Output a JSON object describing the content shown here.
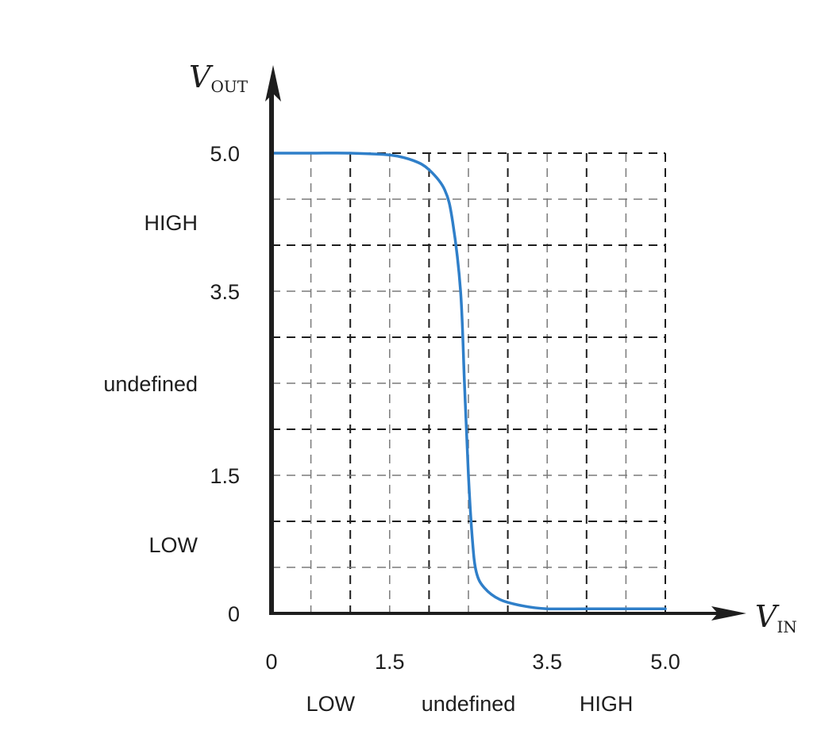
{
  "chart_data": {
    "type": "line",
    "x_axis": {
      "label": "V",
      "label_subscript": "IN",
      "range": [
        0,
        5.0
      ],
      "ticks": [
        {
          "value": 0,
          "label": "0"
        },
        {
          "value": 1.5,
          "label": "1.5"
        },
        {
          "value": 3.5,
          "label": "3.5"
        },
        {
          "value": 5.0,
          "label": "5.0"
        }
      ],
      "regions": [
        {
          "name": "LOW",
          "center": 0.75
        },
        {
          "name": "undefined",
          "center": 2.5
        },
        {
          "name": "HIGH",
          "center": 4.25
        }
      ]
    },
    "y_axis": {
      "label": "V",
      "label_subscript": "OUT",
      "range": [
        0,
        5.0
      ],
      "ticks": [
        {
          "value": 0,
          "label": "0"
        },
        {
          "value": 1.5,
          "label": "1.5"
        },
        {
          "value": 3.5,
          "label": "3.5"
        },
        {
          "value": 5.0,
          "label": "5.0"
        }
      ],
      "regions": [
        {
          "name": "HIGH",
          "center": 4.25
        },
        {
          "name": "undefined",
          "center": 2.5
        },
        {
          "name": "LOW",
          "center": 0.75
        }
      ]
    },
    "grid": true,
    "series": [
      {
        "color": "#2f7fc9",
        "x": [
          0,
          0.5,
          1.0,
          1.5,
          1.8,
          2.0,
          2.2,
          2.3,
          2.4,
          2.45,
          2.5,
          2.55,
          2.6,
          2.7,
          2.9,
          3.2,
          3.5,
          4.0,
          5.0
        ],
        "y": [
          5.0,
          5.0,
          5.0,
          4.98,
          4.92,
          4.82,
          4.6,
          4.25,
          3.5,
          2.5,
          1.5,
          0.8,
          0.45,
          0.28,
          0.15,
          0.08,
          0.05,
          0.05,
          0.05
        ]
      }
    ]
  }
}
